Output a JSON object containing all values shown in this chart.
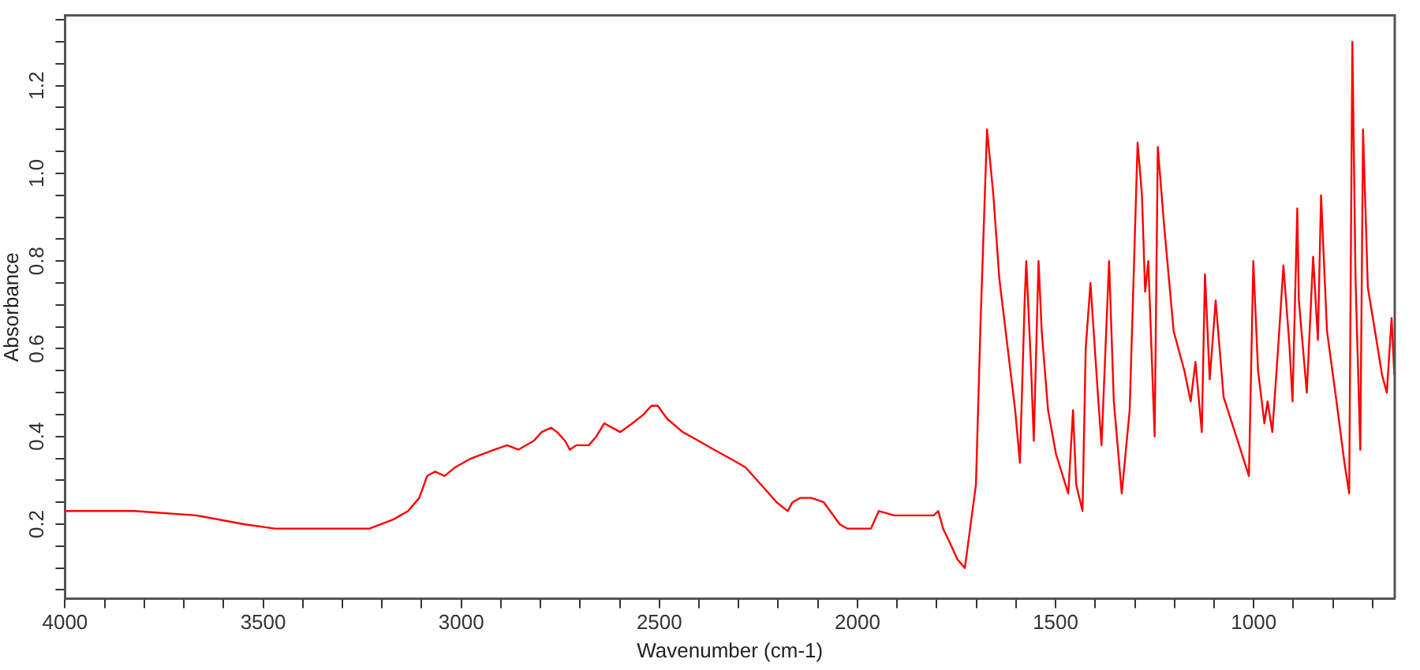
{
  "chart_data": {
    "type": "line",
    "xlabel": "Wavenumber (cm-1)",
    "ylabel": "Absorbance",
    "xlim": [
      4000,
      644
    ],
    "ylim": [
      0.03,
      1.36
    ],
    "xticks": [
      4000,
      {
        "value": 3900,
        "label": null
      },
      {
        "value": 3800,
        "label": null
      },
      {
        "value": 3700,
        "label": null
      },
      {
        "value": 3600,
        "label": null
      },
      3500,
      {
        "value": 3400,
        "label": null
      },
      {
        "value": 3300,
        "label": null
      },
      {
        "value": 3200,
        "label": null
      },
      {
        "value": 3100,
        "label": null
      },
      3000,
      {
        "value": 2900,
        "label": null
      },
      {
        "value": 2800,
        "label": null
      },
      {
        "value": 2700,
        "label": null
      },
      {
        "value": 2600,
        "label": null
      },
      2500,
      {
        "value": 2400,
        "label": null
      },
      {
        "value": 2300,
        "label": null
      },
      {
        "value": 2200,
        "label": null
      },
      {
        "value": 2100,
        "label": null
      },
      2000,
      {
        "value": 1900,
        "label": null
      },
      {
        "value": 1800,
        "label": null
      },
      {
        "value": 1700,
        "label": null
      },
      {
        "value": 1600,
        "label": null
      },
      1500,
      {
        "value": 1400,
        "label": null
      },
      {
        "value": 1300,
        "label": null
      },
      {
        "value": 1200,
        "label": null
      },
      {
        "value": 1100,
        "label": null
      },
      1000,
      {
        "value": 900,
        "label": null
      },
      {
        "value": 800,
        "label": null
      },
      {
        "value": 700,
        "label": null
      }
    ],
    "yticks": [
      {
        "value": 0.05,
        "label": null
      },
      {
        "value": 0.1,
        "label": null
      },
      {
        "value": 0.15,
        "label": null
      },
      0.2,
      {
        "value": 0.25,
        "label": null
      },
      {
        "value": 0.3,
        "label": null
      },
      {
        "value": 0.35,
        "label": null
      },
      0.4,
      {
        "value": 0.45,
        "label": null
      },
      {
        "value": 0.5,
        "label": null
      },
      {
        "value": 0.55,
        "label": null
      },
      0.6,
      {
        "value": 0.65,
        "label": null
      },
      {
        "value": 0.7,
        "label": null
      },
      {
        "value": 0.75,
        "label": null
      },
      0.8,
      {
        "value": 0.85,
        "label": null
      },
      {
        "value": 0.9,
        "label": null
      },
      {
        "value": 0.95,
        "label": null
      },
      {
        "value": 1,
        "label": "1.0"
      },
      {
        "value": 1.05,
        "label": null
      },
      {
        "value": 1.1,
        "label": null
      },
      {
        "value": 1.15,
        "label": null
      },
      1.2,
      {
        "value": 1.25,
        "label": null
      },
      {
        "value": 1.3,
        "label": null
      },
      {
        "value": 1.35,
        "label": null
      }
    ],
    "grid": false,
    "legend": false,
    "marker": "none",
    "line_style": "solid",
    "series": [
      {
        "color": "#ff0000",
        "x": [
          4000,
          3826,
          3668,
          3549,
          3470,
          3351,
          3232,
          3173,
          3134,
          3106,
          3086,
          3066,
          3042,
          3015,
          2975,
          2916,
          2884,
          2856,
          2817,
          2797,
          2773,
          2758,
          2738,
          2726,
          2710,
          2678,
          2659,
          2639,
          2619,
          2599,
          2568,
          2540,
          2520,
          2504,
          2480,
          2441,
          2401,
          2362,
          2322,
          2283,
          2243,
          2204,
          2176,
          2164,
          2144,
          2117,
          2085,
          2045,
          2026,
          1998,
          1966,
          1946,
          1907,
          1847,
          1808,
          1796,
          1784,
          1768,
          1748,
          1729,
          1701,
          1689,
          1673,
          1657,
          1642,
          1622,
          1602,
          1590,
          1578,
          1574,
          1562,
          1555,
          1543,
          1535,
          1519,
          1499,
          1468,
          1456,
          1448,
          1432,
          1424,
          1412,
          1392,
          1384,
          1365,
          1353,
          1333,
          1313,
          1293,
          1282,
          1274,
          1266,
          1250,
          1242,
          1226,
          1202,
          1175,
          1159,
          1147,
          1143,
          1131,
          1123,
          1111,
          1096,
          1076,
          1044,
          1012,
          1001,
          989,
          973,
          965,
          953,
          937,
          925,
          910,
          902,
          890,
          886,
          866,
          850,
          838,
          830,
          815,
          791,
          771,
          759,
          751,
          743,
          731,
          724,
          712,
          692,
          676,
          664,
          652,
          645
        ],
        "values": [
          0.23,
          0.23,
          0.22,
          0.2,
          0.19,
          0.19,
          0.19,
          0.21,
          0.23,
          0.26,
          0.31,
          0.32,
          0.31,
          0.33,
          0.35,
          0.37,
          0.38,
          0.37,
          0.39,
          0.41,
          0.42,
          0.41,
          0.39,
          0.37,
          0.38,
          0.38,
          0.4,
          0.43,
          0.42,
          0.41,
          0.43,
          0.45,
          0.47,
          0.47,
          0.44,
          0.41,
          0.39,
          0.37,
          0.35,
          0.33,
          0.29,
          0.25,
          0.23,
          0.25,
          0.26,
          0.26,
          0.25,
          0.2,
          0.19,
          0.19,
          0.19,
          0.23,
          0.22,
          0.22,
          0.22,
          0.23,
          0.19,
          0.16,
          0.12,
          0.1,
          0.29,
          0.67,
          1.1,
          0.95,
          0.76,
          0.61,
          0.46,
          0.34,
          0.71,
          0.8,
          0.56,
          0.39,
          0.8,
          0.64,
          0.46,
          0.36,
          0.27,
          0.46,
          0.29,
          0.23,
          0.6,
          0.75,
          0.48,
          0.38,
          0.8,
          0.48,
          0.27,
          0.46,
          1.07,
          0.95,
          0.73,
          0.8,
          0.4,
          1.06,
          0.88,
          0.64,
          0.55,
          0.48,
          0.57,
          0.53,
          0.41,
          0.77,
          0.53,
          0.71,
          0.49,
          0.4,
          0.31,
          0.8,
          0.55,
          0.43,
          0.48,
          0.41,
          0.62,
          0.79,
          0.61,
          0.48,
          0.92,
          0.71,
          0.5,
          0.81,
          0.62,
          0.95,
          0.64,
          0.48,
          0.34,
          0.27,
          1.3,
          0.76,
          0.37,
          1.1,
          0.74,
          0.63,
          0.54,
          0.5,
          0.67,
          0.54
        ]
      }
    ]
  }
}
